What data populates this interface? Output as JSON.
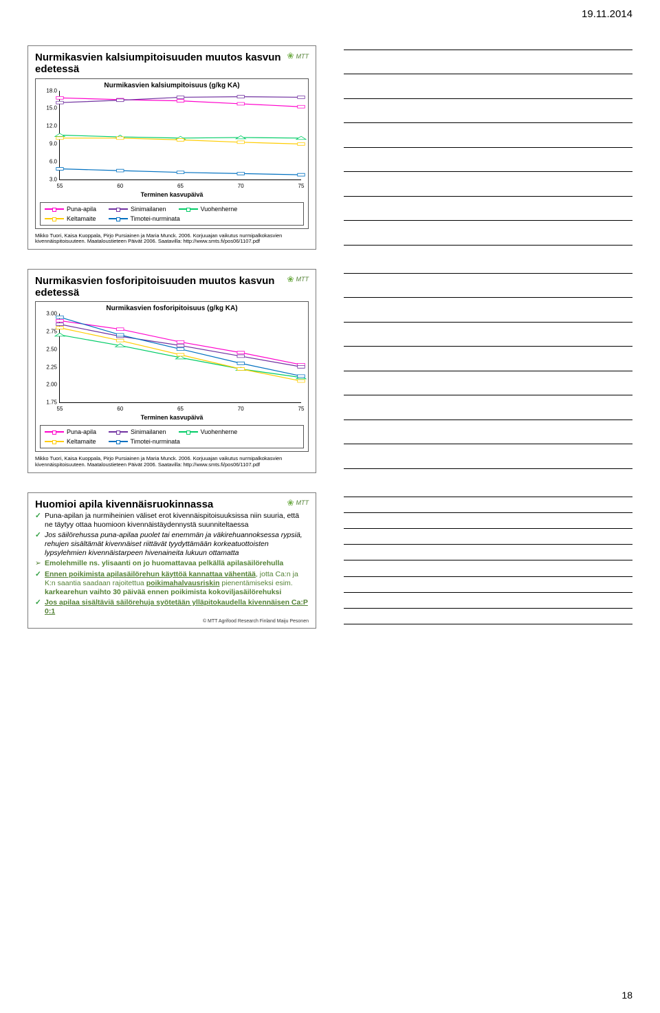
{
  "page": {
    "date": "19.11.2014",
    "pagenum": "18"
  },
  "logo": "MTT",
  "chart_common": {
    "x": [
      55,
      60,
      65,
      70,
      75
    ],
    "xlabel": "Terminen kasvupäivä",
    "series_meta": [
      {
        "name": "Puna-apila",
        "color": "#ff00cc",
        "marker": "square"
      },
      {
        "name": "Sinimailanen",
        "color": "#7030a0",
        "marker": "square"
      },
      {
        "name": "Vuohenherne",
        "color": "#00cc66",
        "marker": "triangle"
      },
      {
        "name": "Keltamaite",
        "color": "#ffcc00",
        "marker": "square"
      },
      {
        "name": "Timotei-nurminata",
        "color": "#0070c0",
        "marker": "square"
      }
    ]
  },
  "slide1": {
    "title": "Nurmikasvien kalsiumpitoisuuden muutos kasvun edetessä",
    "subtitle": "Nurmikasvien kalsiumpitoisuus (g/kg KA)",
    "yticks": [
      "18.0",
      "15.0",
      "12.0",
      "9.0",
      "6.0",
      "3.0"
    ],
    "ymin": 3.0,
    "ymax": 18.0,
    "series": {
      "Puna-apila": [
        16.8,
        16.5,
        16.3,
        15.8,
        15.3
      ],
      "Sinimailanen": [
        16.0,
        16.4,
        16.9,
        17.0,
        16.9
      ],
      "Vuohenherne": [
        10.5,
        10.2,
        10.0,
        10.1,
        10.0
      ],
      "Keltamaite": [
        10.0,
        10.0,
        9.7,
        9.3,
        9.0
      ],
      "Timotei-nurminata": [
        4.8,
        4.5,
        4.2,
        4.0,
        3.8
      ]
    },
    "citation": "Mikko Tuori, Kaisa Kuoppala, Pirjo Pursiainen ja Maria Munck. 2006. Korjuuajan vaikutus nurmipalkokasvien kivennäispitoisuuteen. Maataloustieteen Päivät 2006. Saatavilla: http://www.smts.fi/pos06/1107.pdf"
  },
  "slide2": {
    "title": "Nurmikasvien fosforipitoisuuden muutos kasvun edetessä",
    "subtitle": "Nurmikasvien fosforipitoisuus (g/kg KA)",
    "yticks": [
      "3.00",
      "2.75",
      "2.50",
      "2.25",
      "2.00",
      "1.75"
    ],
    "ymin": 1.75,
    "ymax": 3.0,
    "series": {
      "Puna-apila": [
        2.9,
        2.78,
        2.6,
        2.45,
        2.28
      ],
      "Sinimailanen": [
        2.85,
        2.68,
        2.55,
        2.4,
        2.25
      ],
      "Vuohenherne": [
        2.7,
        2.55,
        2.38,
        2.22,
        2.1
      ],
      "Keltamaite": [
        2.8,
        2.62,
        2.42,
        2.22,
        2.05
      ],
      "Timotei-nurminata": [
        2.95,
        2.7,
        2.5,
        2.3,
        2.12
      ]
    },
    "citation": "Mikko Tuori, Kaisa Kuoppala, Pirjo Pursiainen ja Maria Munck. 2006. Korjuuajan vaikutus nurmipalkokasvien kivennäispitoisuuteen. Maataloustieteen Päivät 2006. Saatavilla: http://www.smts.fi/pos06/1107.pdf"
  },
  "slide3": {
    "title": "Huomioi apila kivennäisruokinnassa",
    "items": [
      {
        "type": "check",
        "html": "Puna-apilan ja nurmiheinien väliset erot kivennäispitoisuuksissa niin suuria, että ne täytyy ottaa huomioon kivennäistäydennystä suunniteltaessa"
      },
      {
        "type": "check",
        "html": "<i>Jos säilörehussa puna-apilaa puolet tai enemmän ja väkirehuannoksessa rypsiä, rehujen sisältämät kivennäiset riittävät tyydyttämään korkeatuottoisten lypsylehmien kivennäistarpeen hivenaineita lukuun ottamatta</i>"
      },
      {
        "type": "arrow",
        "html": "<span class='green'><b>Emolehmille ns. ylisaanti on jo huomattavaa pelkällä apilasäilörehulla</b></span>"
      },
      {
        "type": "check",
        "html": "<span class='green underline'><b>Ennen poikimista apilasäilörehun käyttöä kannattaa vähentää</b></span><span class='green'>, jotta Ca:n ja K:n saantia saadaan rajoitettua <span class='underline'><b>poikimahalvausriskin</b></span> pienentämiseksi esim. <b>karkearehun vaihto 30 päivää ennen poikimista kokoviljasäilörehuksi</b></span>"
      },
      {
        "type": "check",
        "html": "<span class='green underline'><b>Jos apilaa sisältäviä säilörehuja syötetään ylläpitokaudella kivennäisen Ca:P 0:1</b></span>"
      }
    ],
    "credit": "© MTT Agrifood Research Finland Maiju Pesonen"
  },
  "note_lines": 9
}
